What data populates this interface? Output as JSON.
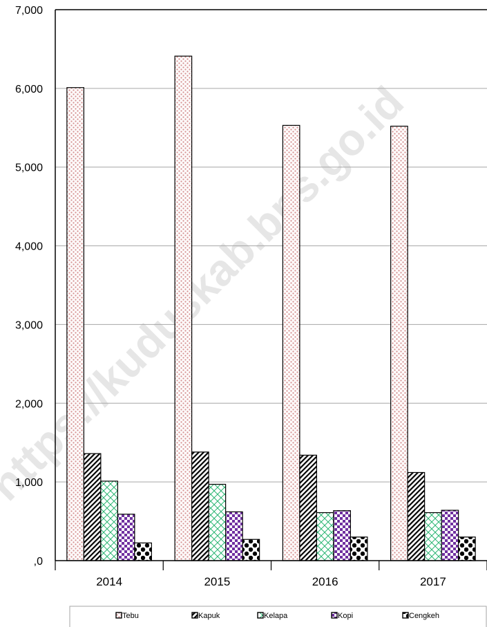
{
  "watermark": "https://kuduskab.bps.go.id",
  "colors": {
    "Tebu": "#d99a9a",
    "Kapuk": "#000000",
    "Kelapa": "#2bb673",
    "Kopi": "#7030a0",
    "Cengkeh": "#000000"
  },
  "chart_data": {
    "type": "bar",
    "title": "",
    "xlabel": "",
    "ylabel": "",
    "categories": [
      "2014",
      "2015",
      "2016",
      "2017"
    ],
    "ylim": [
      0,
      7000
    ],
    "yticks": [
      0,
      1000,
      2000,
      3000,
      4000,
      5000,
      6000,
      7000
    ],
    "ytick_labels": [
      ",0",
      "1,000",
      "2,000",
      "3,000",
      "4,000",
      "5,000",
      "6,000",
      "7,000"
    ],
    "grid": true,
    "legend_position": "bottom",
    "series": [
      {
        "name": "Tebu",
        "values": [
          6010,
          6410,
          5530,
          5520
        ]
      },
      {
        "name": "Kapuk",
        "values": [
          1360,
          1380,
          1340,
          1120
        ]
      },
      {
        "name": "Kelapa",
        "values": [
          1010,
          970,
          610,
          610
        ]
      },
      {
        "name": "Kopi",
        "values": [
          590,
          620,
          635,
          640
        ]
      },
      {
        "name": "Cengkeh",
        "values": [
          225,
          270,
          300,
          300
        ]
      }
    ]
  }
}
